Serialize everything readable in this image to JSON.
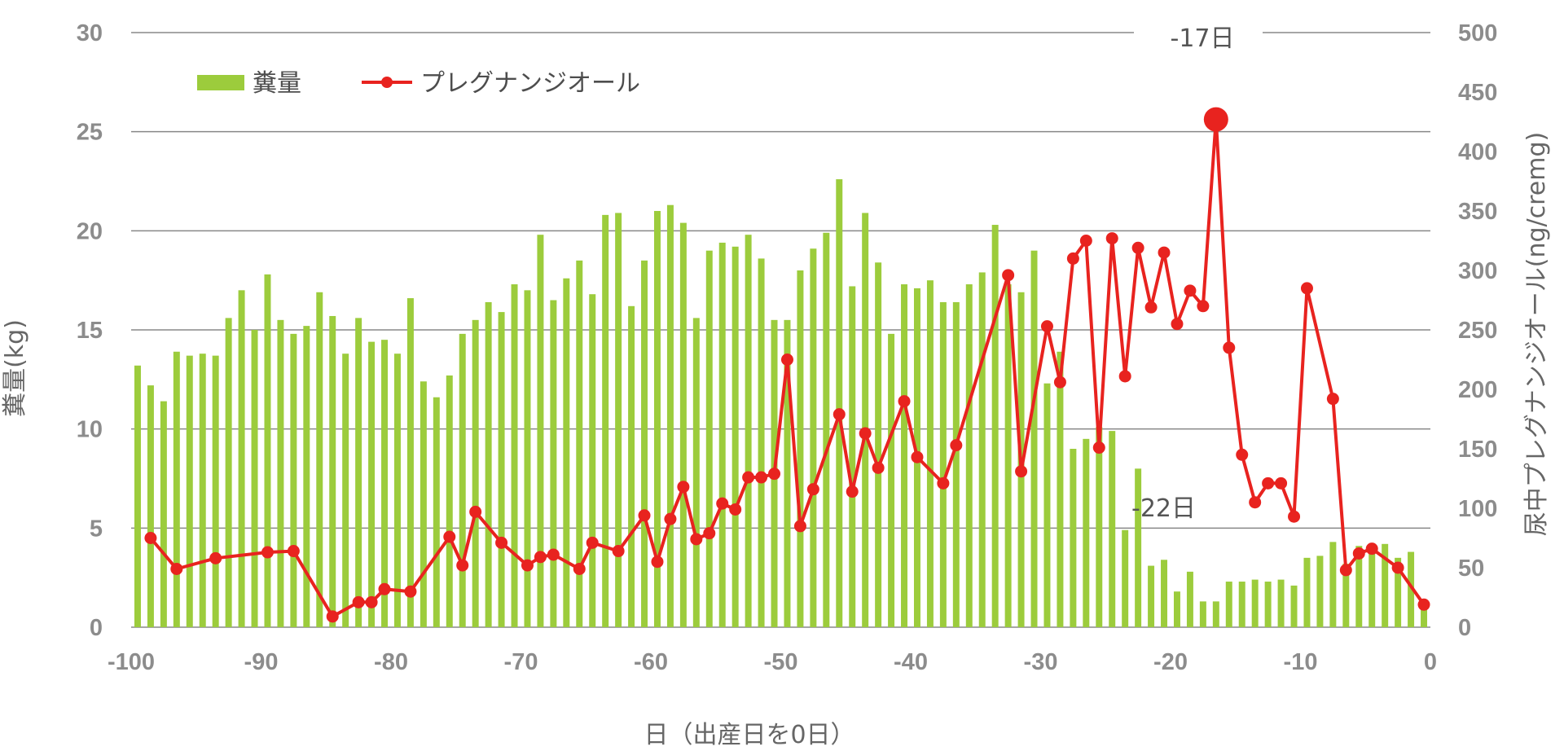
{
  "chart_data": {
    "type": "bar",
    "title": "",
    "xlabel": "日（出産日を0日）",
    "ylabel_left": "糞量(kg)",
    "ylabel_right": "尿中プレグナンジオール(ng/cremg)",
    "xlim": [
      -100,
      0
    ],
    "xticks": [
      "-100",
      "-90",
      "-80",
      "-70",
      "-60",
      "-50",
      "-40",
      "-30",
      "-20",
      "-10",
      "0"
    ],
    "ylim_left": [
      0,
      30
    ],
    "yticks_left": [
      "0",
      "5",
      "10",
      "15",
      "20",
      "25",
      "30"
    ],
    "ylim_right": [
      0,
      500
    ],
    "yticks_right": [
      "0",
      "50",
      "100",
      "150",
      "200",
      "250",
      "300",
      "350",
      "400",
      "450",
      "500"
    ],
    "grid": true,
    "legend_position": "top-left",
    "colors": {
      "bar": "#9ccc3c",
      "line": "#e8231f",
      "grid": "#888888",
      "tick": "#8c8c8c"
    },
    "series": [
      {
        "name": "糞量",
        "kind": "bar",
        "axis": "left",
        "x": [
          -100,
          -99,
          -98,
          -97,
          -96,
          -95,
          -94,
          -93,
          -92,
          -91,
          -90,
          -89,
          -88,
          -87,
          -86,
          -85,
          -84,
          -83,
          -82,
          -81,
          -80,
          -79,
          -78,
          -77,
          -76,
          -75,
          -74,
          -73,
          -72,
          -71,
          -70,
          -69,
          -68,
          -67,
          -66,
          -65,
          -64,
          -63,
          -62,
          -61,
          -60,
          -59,
          -58,
          -57,
          -56,
          -55,
          -54,
          -53,
          -52,
          -51,
          -50,
          -49,
          -48,
          -47,
          -46,
          -45,
          -44,
          -43,
          -42,
          -41,
          -40,
          -39,
          -38,
          -37,
          -36,
          -35,
          -34,
          -33,
          -32,
          -31,
          -30,
          -29,
          -28,
          -27,
          -26,
          -25,
          -24,
          -23,
          -22,
          -21,
          -20,
          -19,
          -18,
          -17,
          -16,
          -15,
          -14,
          -13,
          -12,
          -11,
          -10,
          -9,
          -8,
          -7,
          -6,
          -5,
          -4,
          -3,
          -2,
          -1
        ],
        "values": [
          13.2,
          12.2,
          11.4,
          13.9,
          13.7,
          13.8,
          13.7,
          15.6,
          17.0,
          15.0,
          17.8,
          15.5,
          14.8,
          15.2,
          16.9,
          15.7,
          13.8,
          15.6,
          14.4,
          14.5,
          13.8,
          16.6,
          12.4,
          11.6,
          12.7,
          14.8,
          15.5,
          16.4,
          15.9,
          17.3,
          17.0,
          19.8,
          16.5,
          17.6,
          18.5,
          16.8,
          20.8,
          20.9,
          16.2,
          18.5,
          21.0,
          21.3,
          20.4,
          15.6,
          19.0,
          19.4,
          19.2,
          19.8,
          18.6,
          15.5,
          15.5,
          18.0,
          19.1,
          19.9,
          22.6,
          17.2,
          20.9,
          18.4,
          14.8,
          17.3,
          17.1,
          17.5,
          16.4,
          16.4,
          17.3,
          17.9,
          20.3,
          17.3,
          16.9,
          19.0,
          12.3,
          13.9,
          9.0,
          9.5,
          10.1,
          9.9,
          4.9,
          8.0,
          3.1,
          3.4,
          1.8,
          2.8,
          1.3,
          1.3,
          2.3,
          2.3,
          2.4,
          2.3,
          2.4,
          2.1,
          3.5,
          3.6,
          4.3,
          3.2,
          4.1,
          4.1,
          4.2,
          3.5,
          3.8,
          1.1
        ]
      },
      {
        "name": "プレグナンジオール",
        "kind": "line",
        "axis": "right",
        "x": [
          -99,
          -97,
          -94,
          -90,
          -88,
          -85,
          -83,
          -82,
          -81,
          -79,
          -76,
          -75,
          -74,
          -72,
          -70,
          -69,
          -68,
          -66,
          -65,
          -63,
          -61,
          -60,
          -59,
          -58,
          -57,
          -56,
          -55,
          -54,
          -53,
          -52,
          -51,
          -50,
          -49,
          -48,
          -46,
          -45,
          -44,
          -43,
          -41,
          -40,
          -38,
          -37,
          -33,
          -32,
          -30,
          -29,
          -28,
          -27,
          -26,
          -25,
          -24,
          -23,
          -22,
          -21,
          -20,
          -19,
          -18,
          -17,
          -16,
          -15,
          -14,
          -13,
          -12,
          -11,
          -10,
          -8,
          -7,
          -6,
          -5,
          -3,
          -1
        ],
        "values": [
          75,
          49,
          58,
          63,
          64,
          9,
          21,
          21,
          32,
          30,
          76,
          52,
          97,
          71,
          52,
          59,
          61,
          49,
          71,
          64,
          94,
          55,
          91,
          118,
          74,
          79,
          104,
          99,
          126,
          126,
          129,
          225,
          85,
          116,
          179,
          114,
          163,
          134,
          190,
          143,
          121,
          153,
          296,
          131,
          253,
          206,
          310,
          325,
          151,
          327,
          211,
          319,
          269,
          315,
          255,
          283,
          270,
          427,
          235,
          145,
          105,
          121,
          121,
          93,
          285,
          192,
          48,
          62,
          66,
          50,
          19
        ],
        "highlight": {
          "x": -17,
          "value": 427,
          "label": "-17日"
        }
      }
    ],
    "annotations": [
      {
        "text": "-17日",
        "x": -17,
        "y_right": 500
      },
      {
        "text": "-22日",
        "x": -22,
        "y_left": 6.1
      }
    ]
  }
}
